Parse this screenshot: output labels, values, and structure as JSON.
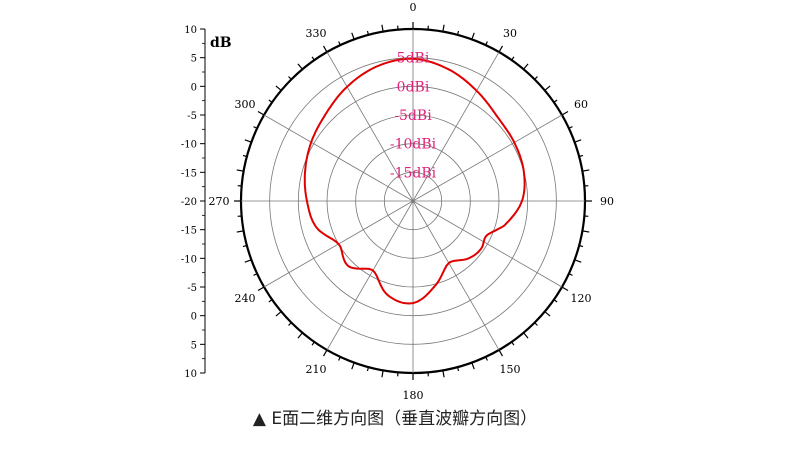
{
  "chart_data": {
    "type": "polar-line",
    "unit_label": "dB",
    "angle_labels": [
      "0",
      "30",
      "60",
      "90",
      "120",
      "150",
      "180",
      "210",
      "240",
      "270",
      "300",
      "330"
    ],
    "angle_label_values": [
      0,
      30,
      60,
      90,
      120,
      150,
      180,
      210,
      240,
      270,
      300,
      330
    ],
    "radial_axis_ticks": [
      "10",
      "5",
      "0",
      "-5",
      "-10",
      "-15",
      "-20",
      "-15",
      "-10",
      "-5",
      "0",
      "5",
      "10"
    ],
    "ring_labels": [
      "5dBi",
      "0dBi",
      "-5dBi",
      "-10dBi",
      "-15dBi"
    ],
    "ring_values": [
      5,
      0,
      -5,
      -10,
      -15
    ],
    "r_min": -20,
    "r_max": 10,
    "series": [
      {
        "color": "#e00000",
        "points": [
          {
            "angle": 0,
            "gain": 4.8
          },
          {
            "angle": 15,
            "gain": 3.8
          },
          {
            "angle": 30,
            "gain": 2.2
          },
          {
            "angle": 45,
            "gain": 0.8
          },
          {
            "angle": 60,
            "gain": 0.4
          },
          {
            "angle": 75,
            "gain": 0.0
          },
          {
            "angle": 90,
            "gain": -1.0
          },
          {
            "angle": 105,
            "gain": -3.5
          },
          {
            "angle": 115,
            "gain": -5.8
          },
          {
            "angle": 125,
            "gain": -5.5
          },
          {
            "angle": 135,
            "gain": -6.0
          },
          {
            "angle": 150,
            "gain": -7.5
          },
          {
            "angle": 165,
            "gain": -4.8
          },
          {
            "angle": 180,
            "gain": -2.2
          },
          {
            "angle": 195,
            "gain": -3.0
          },
          {
            "angle": 210,
            "gain": -6.0
          },
          {
            "angle": 225,
            "gain": -4.0
          },
          {
            "angle": 240,
            "gain": -5.0
          },
          {
            "angle": 255,
            "gain": -2.5
          },
          {
            "angle": 270,
            "gain": -1.5
          },
          {
            "angle": 285,
            "gain": -0.5
          },
          {
            "angle": 300,
            "gain": 0.5
          },
          {
            "angle": 315,
            "gain": 1.5
          },
          {
            "angle": 330,
            "gain": 3.0
          },
          {
            "angle": 345,
            "gain": 4.3
          }
        ]
      }
    ]
  },
  "caption": {
    "marker": "▲",
    "text": "E面二维方向图（垂直波瓣方向图）"
  }
}
